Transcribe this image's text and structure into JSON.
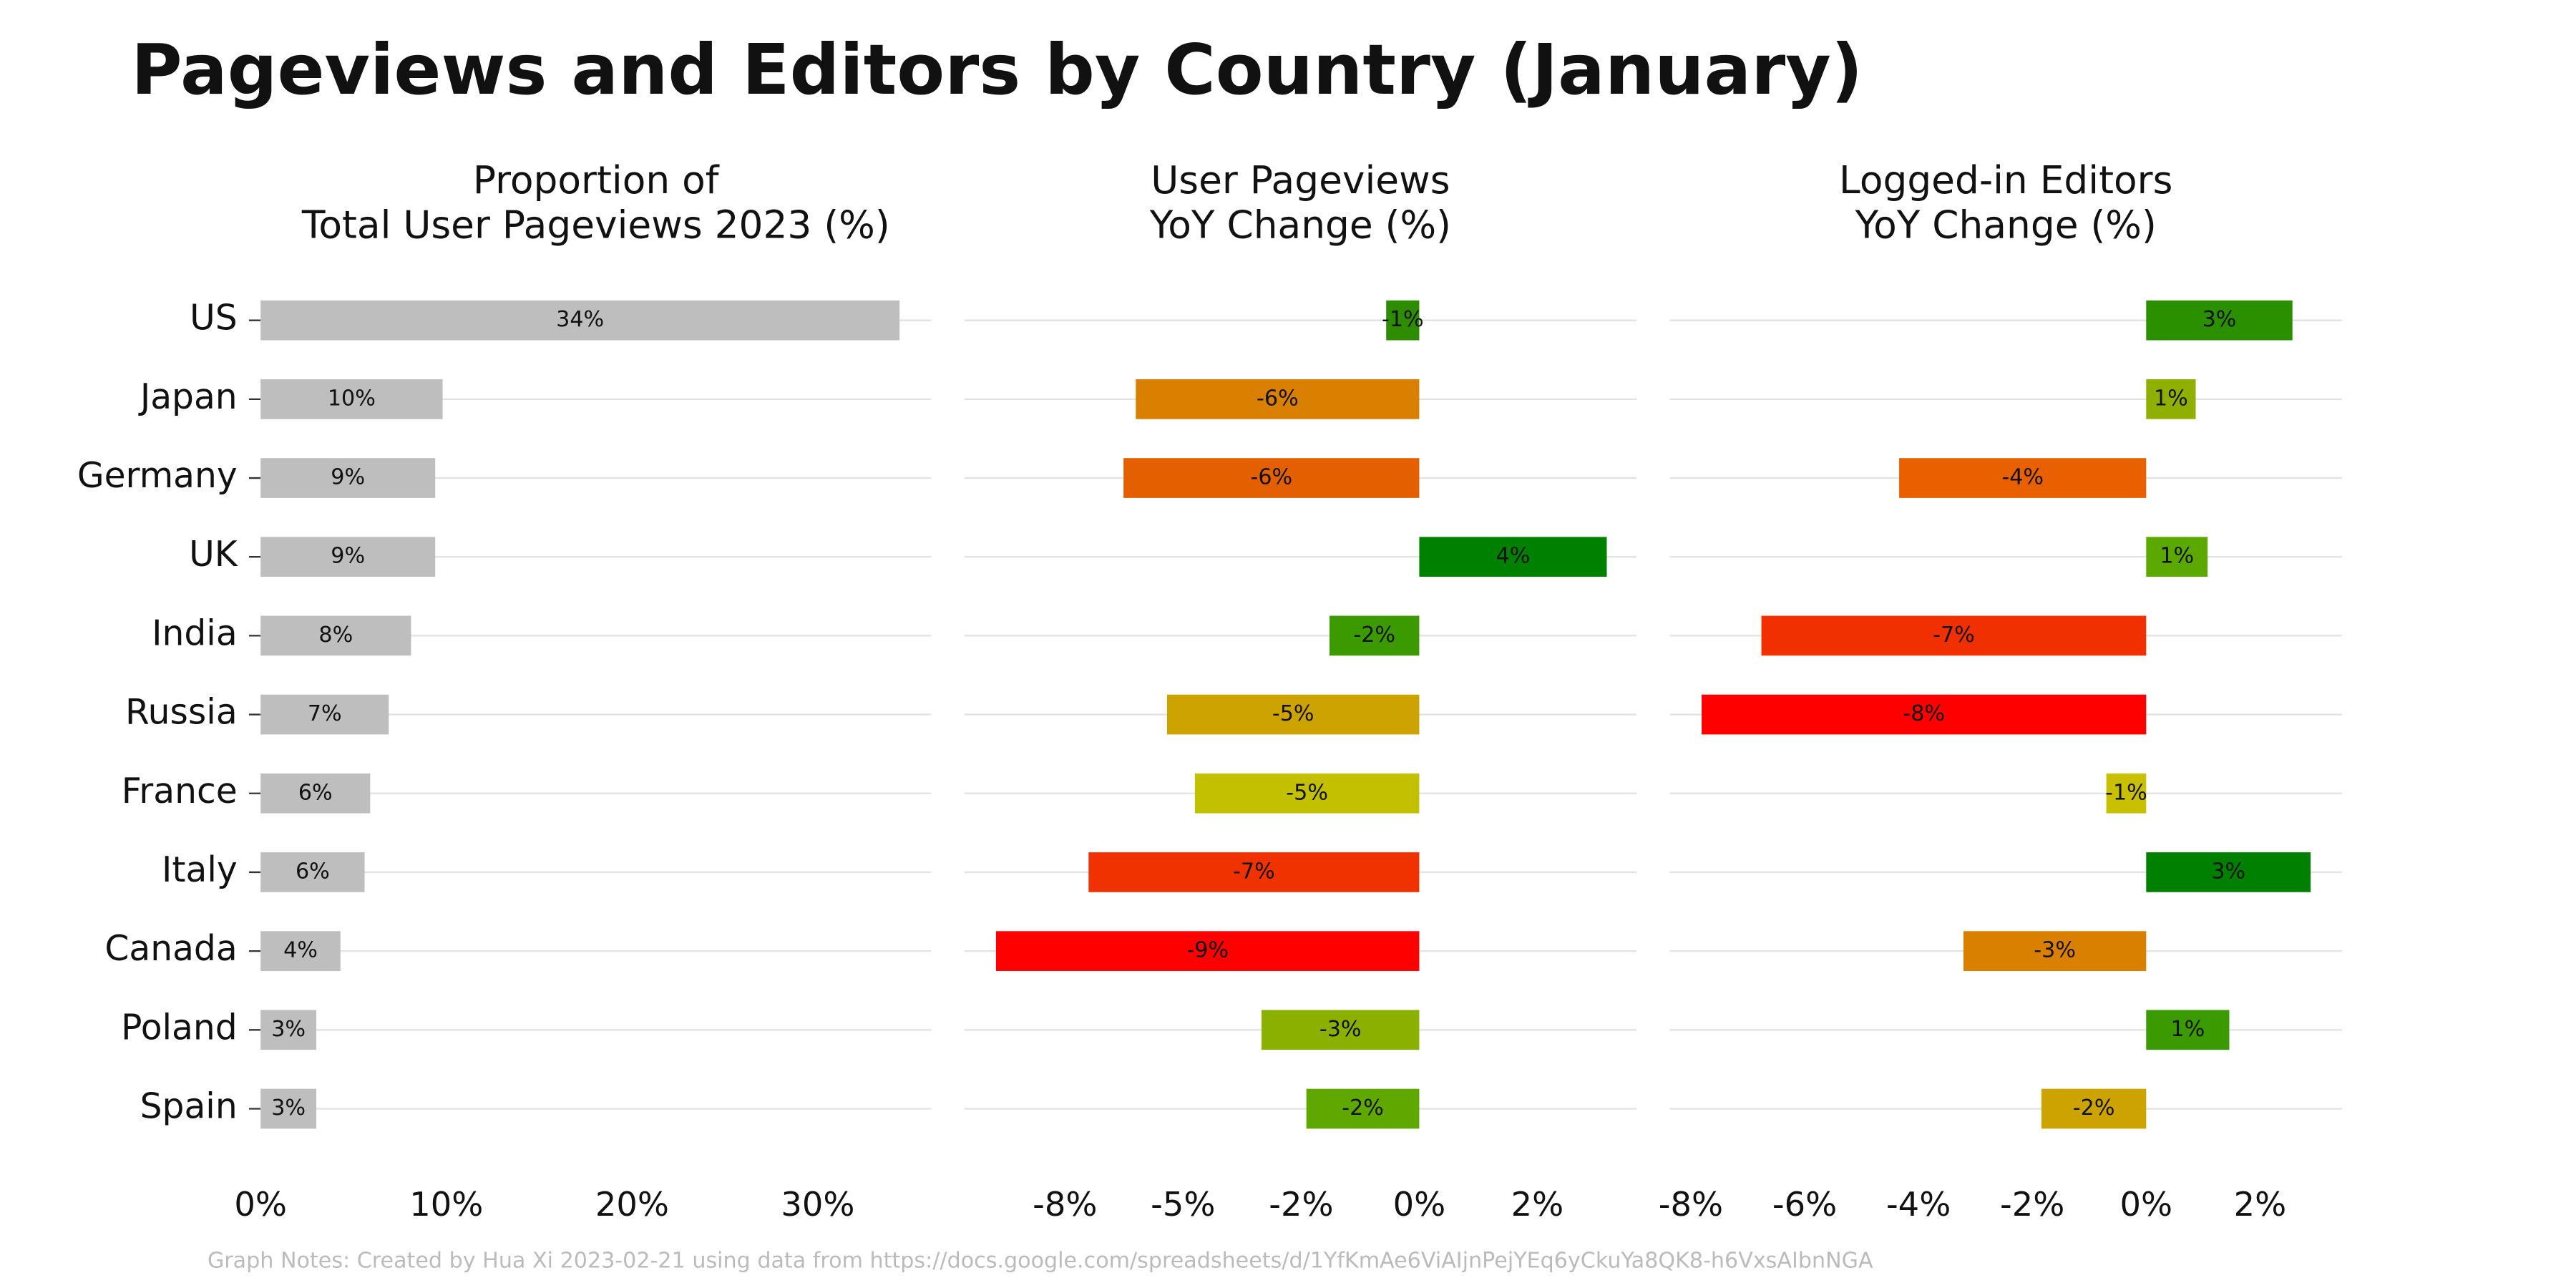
{
  "title": "Pageviews and Editors by Country (January)",
  "note": "Graph Notes: Created by Hua Xi 2023-02-21 using data from https://docs.google.com/spreadsheets/d/1YfKmAe6ViAIjnPejYEq6yCkuYa8QK8-h6VxsAIbnNGA",
  "chart_data": [
    {
      "type": "barh",
      "title": [
        "Proportion of",
        "Total User Pageviews 2023 (%)"
      ],
      "categories": [
        "US",
        "Japan",
        "Germany",
        "UK",
        "India",
        "Russia",
        "France",
        "Italy",
        "Canada",
        "Poland",
        "Spain"
      ],
      "values": [
        34.4,
        9.8,
        9.4,
        9.4,
        8.1,
        6.9,
        5.9,
        5.6,
        4.3,
        3.0,
        3.0
      ],
      "value_labels": [
        "34%",
        "10%",
        "9%",
        "9%",
        "8%",
        "7%",
        "6%",
        "6%",
        "4%",
        "3%",
        "3%"
      ],
      "color": "#bebebe",
      "xlim": [
        0,
        36.1
      ],
      "xticks": [
        {
          "value": 0,
          "label": "0%"
        },
        {
          "value": 10,
          "label": "10%"
        },
        {
          "value": 20,
          "label": "20%"
        },
        {
          "value": 30,
          "label": "30%"
        }
      ]
    },
    {
      "type": "barh",
      "title": [
        "User Pageviews",
        "YoY Change (%)"
      ],
      "values": [
        -0.7,
        -6.0,
        -6.26,
        3.97,
        -1.9,
        -5.34,
        -4.75,
        -7.0,
        -8.96,
        -3.34,
        -2.39
      ],
      "value_labels": [
        "-1%",
        "-6%",
        "-6%",
        "4%",
        "-2%",
        "-5%",
        "-5%",
        "-7%",
        "-9%",
        "-3%",
        "-2%"
      ],
      "colors": [
        "#2e8c00",
        "#d98000",
        "#e45f00",
        "#008000",
        "#3a9a00",
        "#cca300",
        "#c2c000",
        "#f03200",
        "#ff0000",
        "#8ab000",
        "#5fa800"
      ],
      "xlim": [
        -9.63,
        4.6
      ],
      "xticks": [
        {
          "value": -7.5,
          "label": "-8%"
        },
        {
          "value": -5,
          "label": "-5%"
        },
        {
          "value": -2.5,
          "label": "-2%"
        },
        {
          "value": 0,
          "label": "0%"
        },
        {
          "value": 2.5,
          "label": "2%"
        }
      ]
    },
    {
      "type": "barh",
      "title": [
        "Logged-in Editors",
        "YoY Change (%)"
      ],
      "values": [
        2.57,
        0.87,
        -4.34,
        1.08,
        -6.76,
        -7.81,
        -0.7,
        2.89,
        -3.21,
        1.46,
        -1.84
      ],
      "value_labels": [
        "3%",
        "1%",
        "-4%",
        "1%",
        "-7%",
        "-8%",
        "-1%",
        "3%",
        "-3%",
        "1%",
        "-2%"
      ],
      "colors": [
        "#2a9000",
        "#8fb000",
        "#e86000",
        "#5aa800",
        "#f03000",
        "#ff0000",
        "#c8c000",
        "#008000",
        "#d98000",
        "#3a9a00",
        "#cca300"
      ],
      "xlim": [
        -8.37,
        3.44
      ],
      "xticks": [
        {
          "value": -8,
          "label": "-8%"
        },
        {
          "value": -6,
          "label": "-6%"
        },
        {
          "value": -4,
          "label": "-4%"
        },
        {
          "value": -2,
          "label": "-2%"
        },
        {
          "value": 0,
          "label": "0%"
        },
        {
          "value": 2,
          "label": "2%"
        }
      ]
    }
  ]
}
